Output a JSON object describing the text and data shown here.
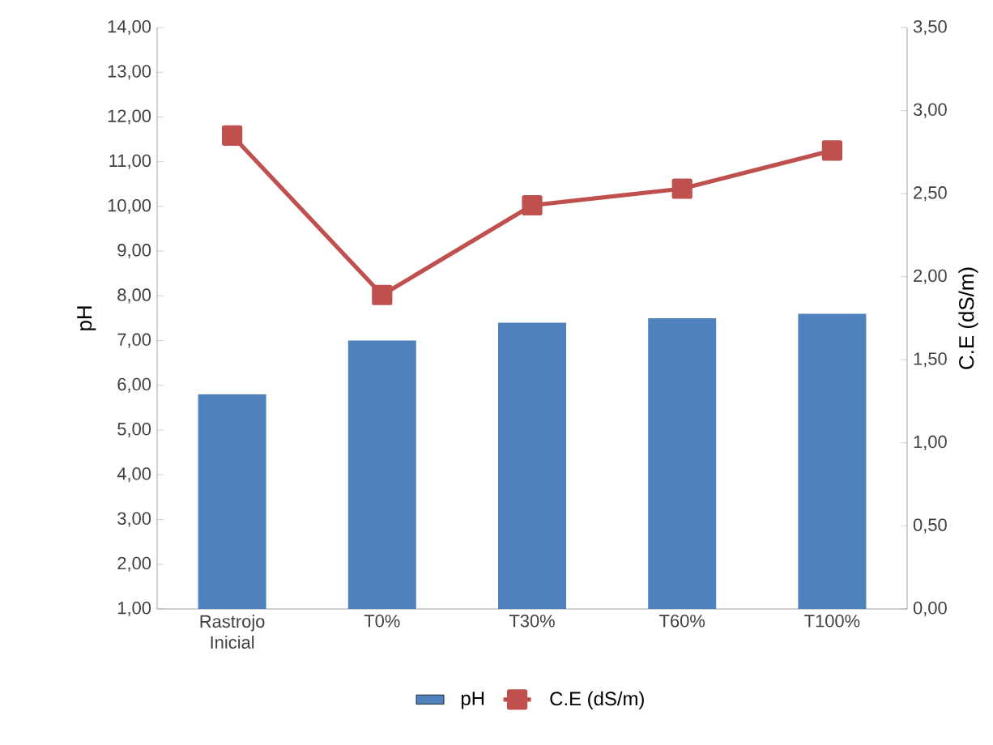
{
  "chart_data": {
    "type": "bar",
    "categories": [
      "Rastrojo Inicial",
      "T0%",
      "T30%",
      "T60%",
      "T100%"
    ],
    "series": [
      {
        "name": "pH",
        "color": "#4f81bd",
        "values": [
          5.8,
          7.0,
          7.4,
          7.5,
          7.6
        ]
      },
      {
        "name": "C.E (dS/m)",
        "type": "line",
        "axis": "y2",
        "color": "#c0504d",
        "marker": "square",
        "values": [
          2.85,
          1.89,
          2.43,
          2.53,
          2.76
        ]
      }
    ],
    "ylabel": "pH",
    "y2label": "C.E (dS/m)",
    "ylim": [
      1,
      14
    ],
    "yticks": [
      {
        "value": 1,
        "label": "1,00"
      },
      {
        "value": 2,
        "label": "2,00"
      },
      {
        "value": 3,
        "label": "3,00"
      },
      {
        "value": 4,
        "label": "4,00"
      },
      {
        "value": 5,
        "label": "5,00"
      },
      {
        "value": 6,
        "label": "6,00"
      },
      {
        "value": 7,
        "label": "7,00"
      },
      {
        "value": 8,
        "label": "8,00"
      },
      {
        "value": 9,
        "label": "9,00"
      },
      {
        "value": 10,
        "label": "10,00"
      },
      {
        "value": 11,
        "label": "11,00"
      },
      {
        "value": 12,
        "label": "12,00"
      },
      {
        "value": 13,
        "label": "13,00"
      },
      {
        "value": 14,
        "label": "14,00"
      }
    ],
    "y2lim": [
      0,
      3.5
    ],
    "y2ticks": [
      {
        "value": 0,
        "label": "0,00"
      },
      {
        "value": 0.5,
        "label": "0,50"
      },
      {
        "value": 1,
        "label": "1,00"
      },
      {
        "value": 1.5,
        "label": "1,50"
      },
      {
        "value": 2,
        "label": "2,00"
      },
      {
        "value": 2.5,
        "label": "2,50"
      },
      {
        "value": 3,
        "label": "3,00"
      },
      {
        "value": 3.5,
        "label": "3,50"
      }
    ],
    "legend": "bottom"
  }
}
